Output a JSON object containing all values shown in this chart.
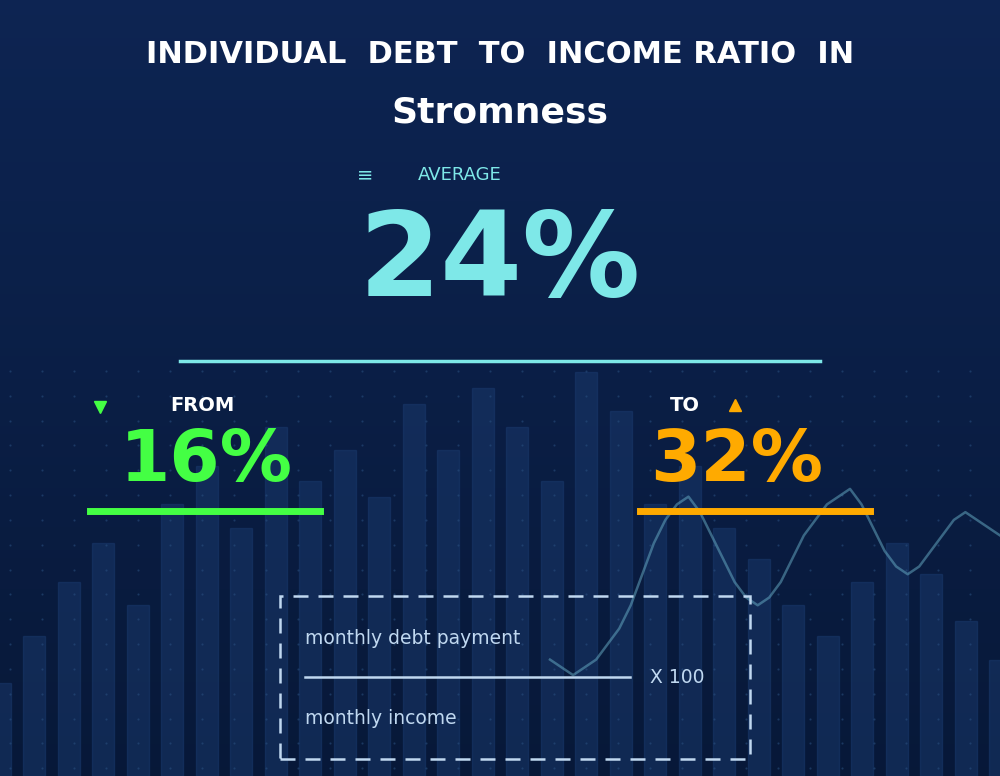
{
  "title_line1": "INDIVIDUAL  DEBT  TO  INCOME RATIO  IN",
  "title_line2": "Stromness",
  "avg_label": "AVERAGE",
  "avg_value": "24%",
  "from_label": "FROM",
  "from_value": "16%",
  "to_label": "TO",
  "to_value": "32%",
  "formula_numerator": "monthly debt payment",
  "formula_denominator": "monthly income",
  "formula_multiplier": "X 100",
  "bg_color_top": "#0d2452",
  "bg_color_bottom": "#0a1e45",
  "avg_color": "#7ee8e8",
  "from_color": "#44ff44",
  "to_color": "#ffaa00",
  "white_color": "#ffffff",
  "formula_color": "#c0d8f0",
  "separator_color": "#7ee8e8",
  "chart_line_color": "#6ab0c8"
}
